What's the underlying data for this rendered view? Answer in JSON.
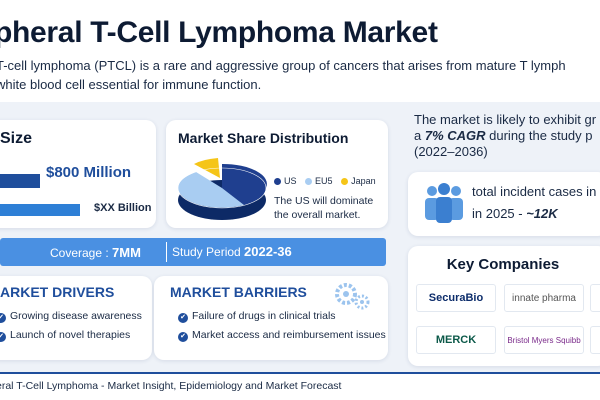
{
  "header": {
    "title": "pheral T-Cell Lymphoma Market",
    "description_line1": "T-cell lymphoma (PTCL) is a rare and aggressive group of cancers that arises from mature T lymph",
    "description_line2": "white blood cell essential for immune function."
  },
  "market_size": {
    "title": "Size",
    "value_current": "$800 Million",
    "value_future": "$XX Billion",
    "bar_fractions": [
      0.4,
      0.8
    ]
  },
  "market_share": {
    "title": "Market Share Distribution",
    "legend": [
      {
        "label": "US",
        "color": "#1f3f8f"
      },
      {
        "label": "EU5",
        "color": "#a9cdf2"
      },
      {
        "label": "Japan",
        "color": "#f5c518"
      }
    ],
    "note_line1": "The US will dominate",
    "note_line2": "the overall market."
  },
  "coverage_bar": {
    "coverage_label": "Coverage : ",
    "coverage_value": "7MM",
    "study_label": "Study Period ",
    "study_value": "2022-36"
  },
  "drivers": {
    "title": "ARKET DRIVERS",
    "items": [
      "Growing disease awareness",
      "Launch of novel therapies"
    ]
  },
  "barriers": {
    "title": "MARKET BARRIERS",
    "items": [
      "Failure of drugs in clinical trials",
      "Market access and reimbursement issues"
    ]
  },
  "cagr": {
    "line1": "The market is likely to exhibit gr",
    "line2_prefix": "a ",
    "line2_bold": "7% CAGR",
    "line2_suffix": " during the study p",
    "line3": "(2022–2036)"
  },
  "incidence": {
    "line1": "total incident cases in",
    "line2_prefix": "in 2025 - ",
    "line2_bold": "~12K"
  },
  "companies": {
    "title": "Key Companies",
    "logos": [
      "SecuraBio",
      "innate pharma",
      "MERCK",
      "Bristol Myers Squibb"
    ]
  },
  "footer": {
    "text": "eral T-Cell Lymphoma - Market Insight, Epidemiology and Market Forecast"
  },
  "colors": {
    "primary": "#1f4e9c",
    "accent": "#4a90e2",
    "band_background": "#eef2f8"
  }
}
